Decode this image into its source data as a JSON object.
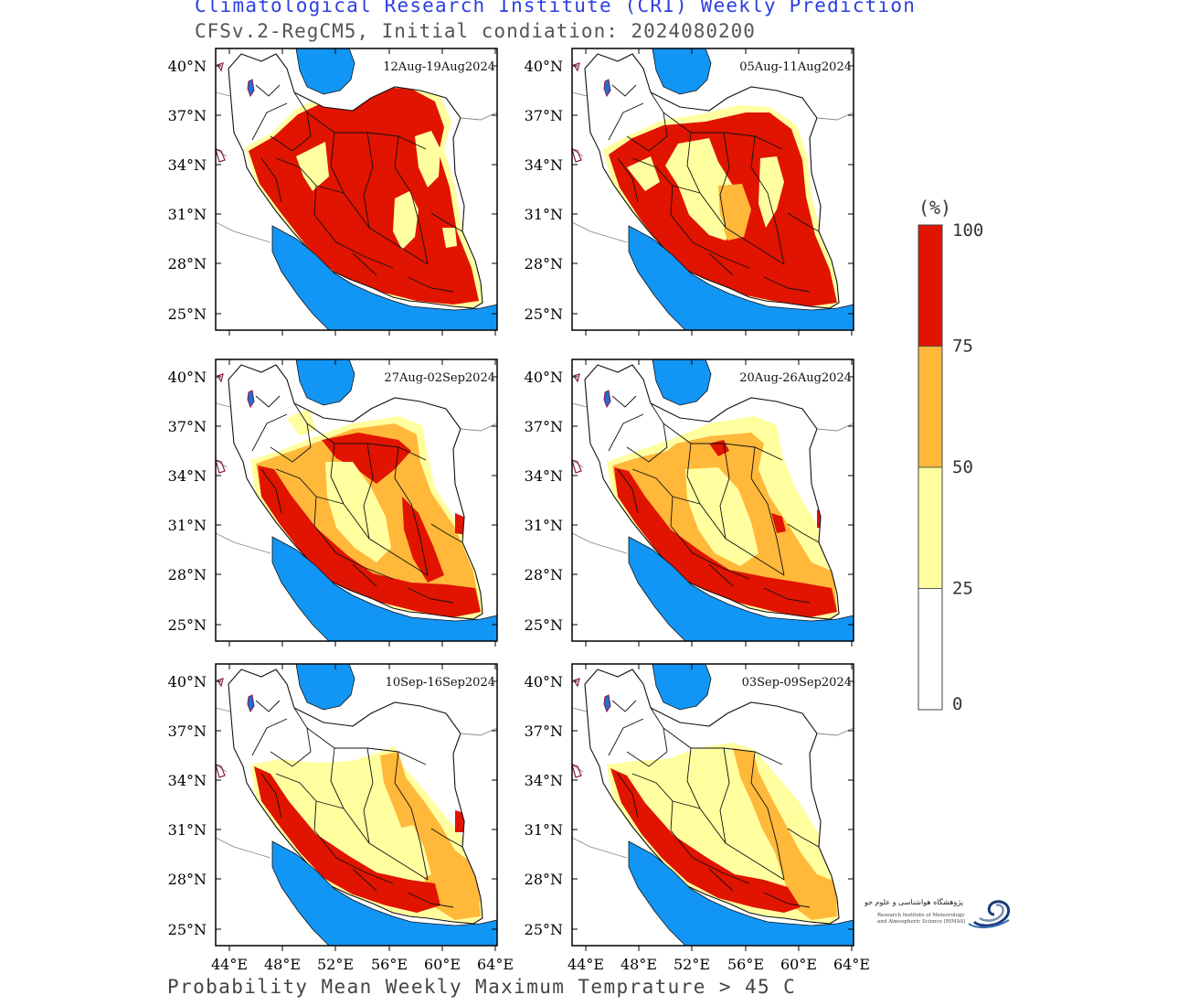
{
  "header": {
    "title": "Climatological Research Institute (CRI) Weekly Prediction",
    "subtitle": "CFSv.2-RegCM5, Initial condiation: 2024080200"
  },
  "footer": {
    "caption": "Probability Mean Weekly Maximum Temprature > 45 C"
  },
  "axes": {
    "lat_labels": [
      "40°N",
      "37°N",
      "34°N",
      "31°N",
      "28°N",
      "25°N"
    ],
    "lon_labels": [
      "44°E",
      "48°E",
      "52°E",
      "56°E",
      "60°E",
      "64°E"
    ]
  },
  "panels": [
    {
      "period": "12Aug-19Aug2024",
      "level": "high"
    },
    {
      "period": "05Aug-11Aug2024",
      "level": "high2"
    },
    {
      "period": "27Aug-02Sep2024",
      "level": "med"
    },
    {
      "period": "20Aug-26Aug2024",
      "level": "med2"
    },
    {
      "period": "10Sep-16Sep2024",
      "level": "low"
    },
    {
      "period": "03Sep-09Sep2024",
      "level": "low2"
    }
  ],
  "legend": {
    "unit": "(%)",
    "ticks": [
      "100",
      "75",
      "50",
      "25",
      "0"
    ],
    "bins": [
      {
        "range": "75-100",
        "color": "#e01400"
      },
      {
        "range": "50-75",
        "color": "#ffb83a"
      },
      {
        "range": "25-50",
        "color": "#ffffa0"
      },
      {
        "range": "0-25",
        "color": "#ffffff"
      }
    ]
  },
  "colors": {
    "sea": "#1296f5",
    "title": "#2b3fe0",
    "lake": "#8b1a4a"
  },
  "logo": {
    "name_fa": "پژوهشگاه هواشناسی و علوم جو",
    "name_en_line1": "Research Institute of Meteorology",
    "name_en_line2": "and Atmospheric Science (RIMAS)"
  }
}
